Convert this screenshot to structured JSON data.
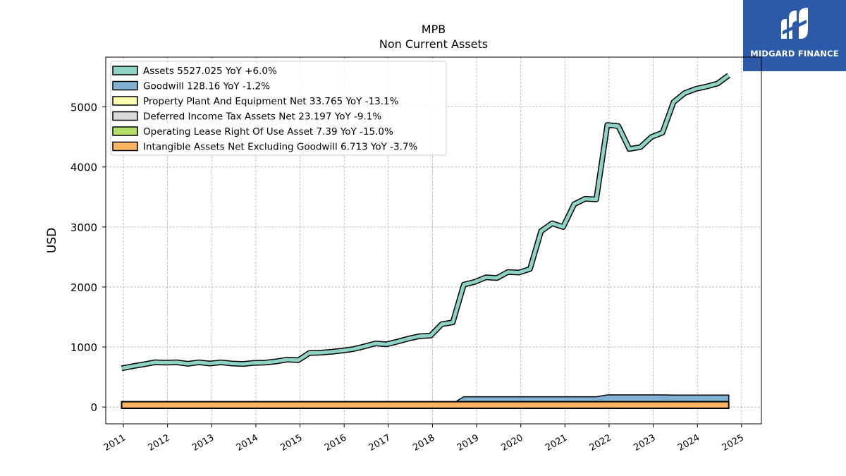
{
  "header": {
    "ticker": "MPB",
    "subtitle": "Non Current  Assets"
  },
  "logo": {
    "brand": "MIDGARD FINANCE",
    "color": "#2c5aa8"
  },
  "chart_data": {
    "type": "area",
    "title": "MPB",
    "subtitle": "Non Current  Assets",
    "ylabel": "USD",
    "xlabel": "",
    "xlim": [
      2010.6,
      2025.45
    ],
    "ylim": [
      -280,
      5830
    ],
    "yticks": [
      0,
      1000,
      2000,
      3000,
      4000,
      5000
    ],
    "xticks": [
      "2011",
      "2012",
      "2013",
      "2014",
      "2015",
      "2016",
      "2017",
      "2018",
      "2019",
      "2020",
      "2021",
      "2022",
      "2023",
      "2024",
      "2025"
    ],
    "grid": true,
    "legend_position": "top-left",
    "x": [
      2010.96,
      2011.21,
      2011.46,
      2011.71,
      2011.96,
      2012.21,
      2012.46,
      2012.71,
      2012.96,
      2013.21,
      2013.46,
      2013.71,
      2013.96,
      2014.21,
      2014.46,
      2014.71,
      2014.96,
      2015.21,
      2015.46,
      2015.71,
      2015.96,
      2016.21,
      2016.46,
      2016.71,
      2016.96,
      2017.21,
      2017.46,
      2017.71,
      2017.96,
      2018.21,
      2018.46,
      2018.71,
      2018.96,
      2019.21,
      2019.46,
      2019.71,
      2019.96,
      2020.21,
      2020.46,
      2020.71,
      2020.96,
      2021.21,
      2021.46,
      2021.71,
      2021.96,
      2022.21,
      2022.46,
      2022.71,
      2022.96,
      2023.21,
      2023.46,
      2023.71,
      2023.96,
      2024.21,
      2024.46,
      2024.71
    ],
    "series": [
      {
        "name": "Assets",
        "legend": "Assets  5527.025 YoY +6.0%",
        "color": "#8dd3c7",
        "values": [
          645,
          680,
          710,
          745,
          740,
          745,
          720,
          745,
          725,
          745,
          725,
          718,
          735,
          740,
          760,
          790,
          780,
          900,
          905,
          920,
          940,
          965,
          1010,
          1060,
          1045,
          1090,
          1140,
          1180,
          1190,
          1380,
          1410,
          2040,
          2085,
          2160,
          2150,
          2250,
          2240,
          2300,
          2930,
          3060,
          3000,
          3380,
          3470,
          3460,
          4700,
          4680,
          4300,
          4330,
          4500,
          4570,
          5080,
          5230,
          5300,
          5340,
          5390,
          5527
        ]
      },
      {
        "name": "Goodwill",
        "legend": "Goodwill  128.16 YoY -1.2%",
        "color": "#80b1d3",
        "value": 128.16
      },
      {
        "name": "Property Plant And Equipment Net",
        "legend": "Property Plant And Equipment Net  33.765 YoY -13.1%",
        "color": "#ffffb3",
        "value": 33.765
      },
      {
        "name": "Deferred Income Tax Assets Net",
        "legend": "Deferred Income Tax Assets Net  23.197 YoY -9.1%",
        "color": "#d9d9d9",
        "value": 23.197
      },
      {
        "name": "Operating Lease Right Of Use Asset",
        "legend": "Operating Lease Right Of Use Asset  7.39 YoY -15.0%",
        "color": "#b3de69",
        "value": 7.39
      },
      {
        "name": "Intangible Assets Net Excluding Goodwill",
        "legend": "Intangible Assets Net Excluding Goodwill  6.713 YoY -3.7%",
        "color": "#fdb462",
        "value": 6.713
      }
    ]
  }
}
